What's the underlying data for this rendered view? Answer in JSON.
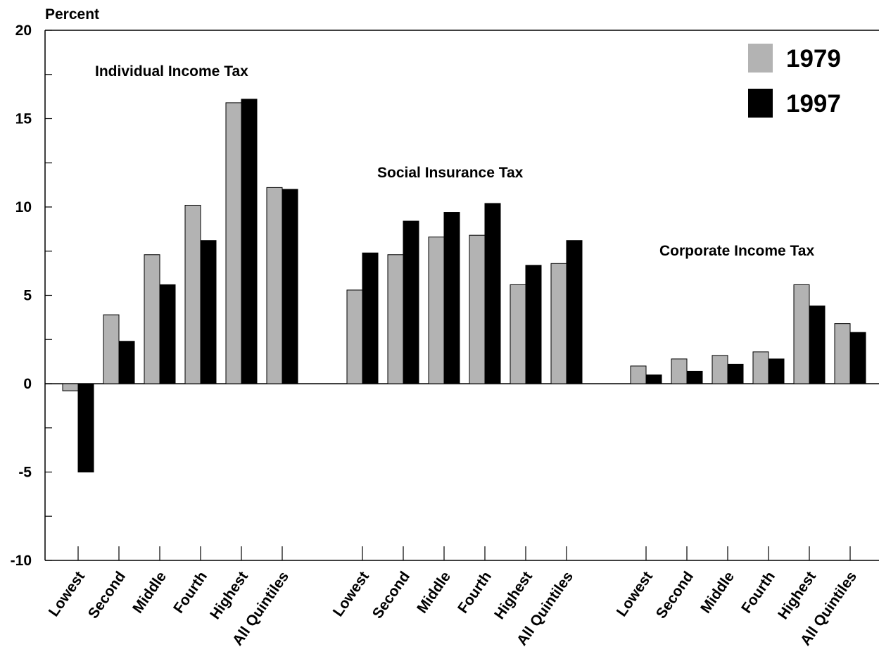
{
  "chart_data": {
    "type": "bar",
    "ylabel": "Percent",
    "ylim": [
      -10,
      20
    ],
    "yticks": [
      "20",
      "15",
      "10",
      "5",
      "0",
      "-5",
      "-10"
    ],
    "yticks_values": [
      20,
      15,
      10,
      5,
      0,
      -5,
      -10
    ],
    "legend_position": "top-right",
    "grid": false,
    "series_meta": [
      {
        "name": "1979",
        "color": "#b3b3b3"
      },
      {
        "name": "1997",
        "color": "#000000"
      }
    ],
    "groups": [
      {
        "title": "Individual Income Tax",
        "categories": [
          "Lowest",
          "Second",
          "Middle",
          "Fourth",
          "Highest",
          "All Quintiles"
        ],
        "series": [
          {
            "name": "1979",
            "values": [
              -0.4,
              3.9,
              7.3,
              10.1,
              15.9,
              11.1
            ]
          },
          {
            "name": "1997",
            "values": [
              -5.0,
              2.4,
              5.6,
              8.1,
              16.1,
              11.0
            ]
          }
        ]
      },
      {
        "title": "Social Insurance Tax",
        "categories": [
          "Lowest",
          "Second",
          "Middle",
          "Fourth",
          "Highest",
          "All Quintiles"
        ],
        "series": [
          {
            "name": "1979",
            "values": [
              5.3,
              7.3,
              8.3,
              8.4,
              5.6,
              6.8
            ]
          },
          {
            "name": "1997",
            "values": [
              7.4,
              9.2,
              9.7,
              10.2,
              6.7,
              8.1
            ]
          }
        ]
      },
      {
        "title": "Corporate Income Tax",
        "categories": [
          "Lowest",
          "Second",
          "Middle",
          "Fourth",
          "Highest",
          "All Quintiles"
        ],
        "series": [
          {
            "name": "1979",
            "values": [
              1.0,
              1.4,
              1.6,
              1.8,
              5.6,
              3.4
            ]
          },
          {
            "name": "1997",
            "values": [
              0.5,
              0.7,
              1.1,
              1.4,
              4.4,
              2.9
            ]
          }
        ]
      }
    ]
  }
}
